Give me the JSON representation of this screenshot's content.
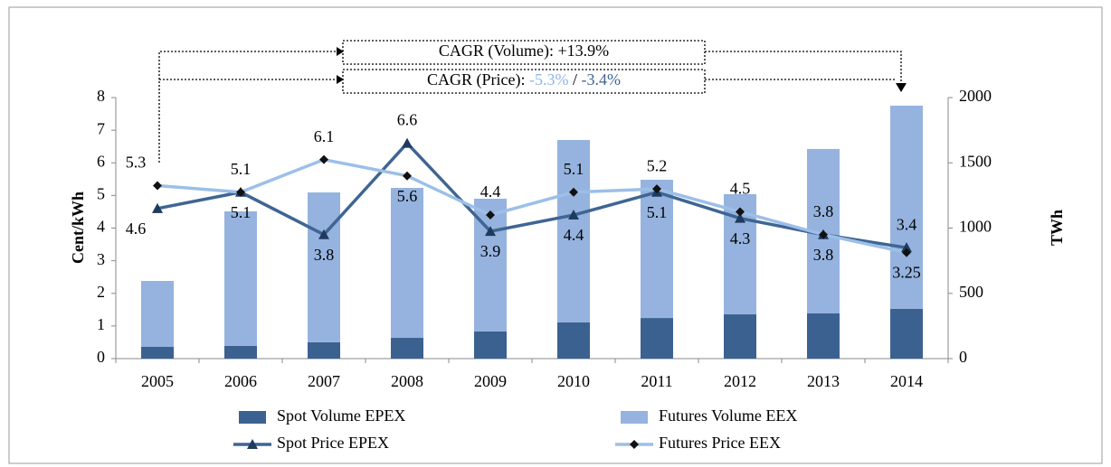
{
  "chart_data": {
    "type": "bar-line",
    "y_label": "Cent/kWh",
    "y2_label": "TWh",
    "annotations": [
      {
        "text": "CAGR (Volume): +13.9%"
      },
      {
        "parts": [
          "CAGR (Price): ",
          "-5.3%",
          " / ",
          "-3.4%"
        ],
        "colors": [
          "#000000",
          "#8fb4e3",
          "#000000",
          "#3f6593"
        ]
      }
    ],
    "categories": [
      "2005",
      "2006",
      "2007",
      "2008",
      "2009",
      "2010",
      "2011",
      "2012",
      "2013",
      "2014"
    ],
    "series": [
      {
        "name": "Spot Volume EPEX",
        "kind": "bar",
        "axis": "y2",
        "color": "#3b6191",
        "values": [
          90,
          97,
          125,
          159,
          208,
          277,
          311,
          339,
          346,
          381
        ]
      },
      {
        "name": "Futures Volume EEX",
        "kind": "bar",
        "axis": "y2",
        "color": "#95b3de",
        "values": [
          505,
          1031,
          1148,
          1149,
          1017,
          1398,
          1059,
          921,
          1260,
          1557
        ]
      },
      {
        "name": "Spot Price EPEX",
        "kind": "line",
        "marker": "triangle",
        "color": "#3f6593",
        "marker_color": "#1f3a5f",
        "values": [
          4.6,
          5.1,
          3.8,
          6.6,
          3.9,
          4.4,
          5.1,
          4.3,
          3.8,
          3.4
        ]
      },
      {
        "name": "Futures Price EEX",
        "kind": "line",
        "marker": "diamond",
        "color": "#9cbfe8",
        "marker_color": "#111111",
        "values": [
          5.3,
          5.1,
          6.1,
          5.6,
          4.4,
          5.1,
          5.2,
          4.5,
          3.8,
          3.25
        ]
      }
    ],
    "ylim": [
      0,
      8
    ],
    "yticks": [
      0,
      1,
      2,
      3,
      4,
      5,
      6,
      7,
      8
    ],
    "y2lim": [
      0,
      2000
    ],
    "y2ticks": [
      0,
      500,
      1000,
      1500,
      2000
    ],
    "grid": false
  }
}
